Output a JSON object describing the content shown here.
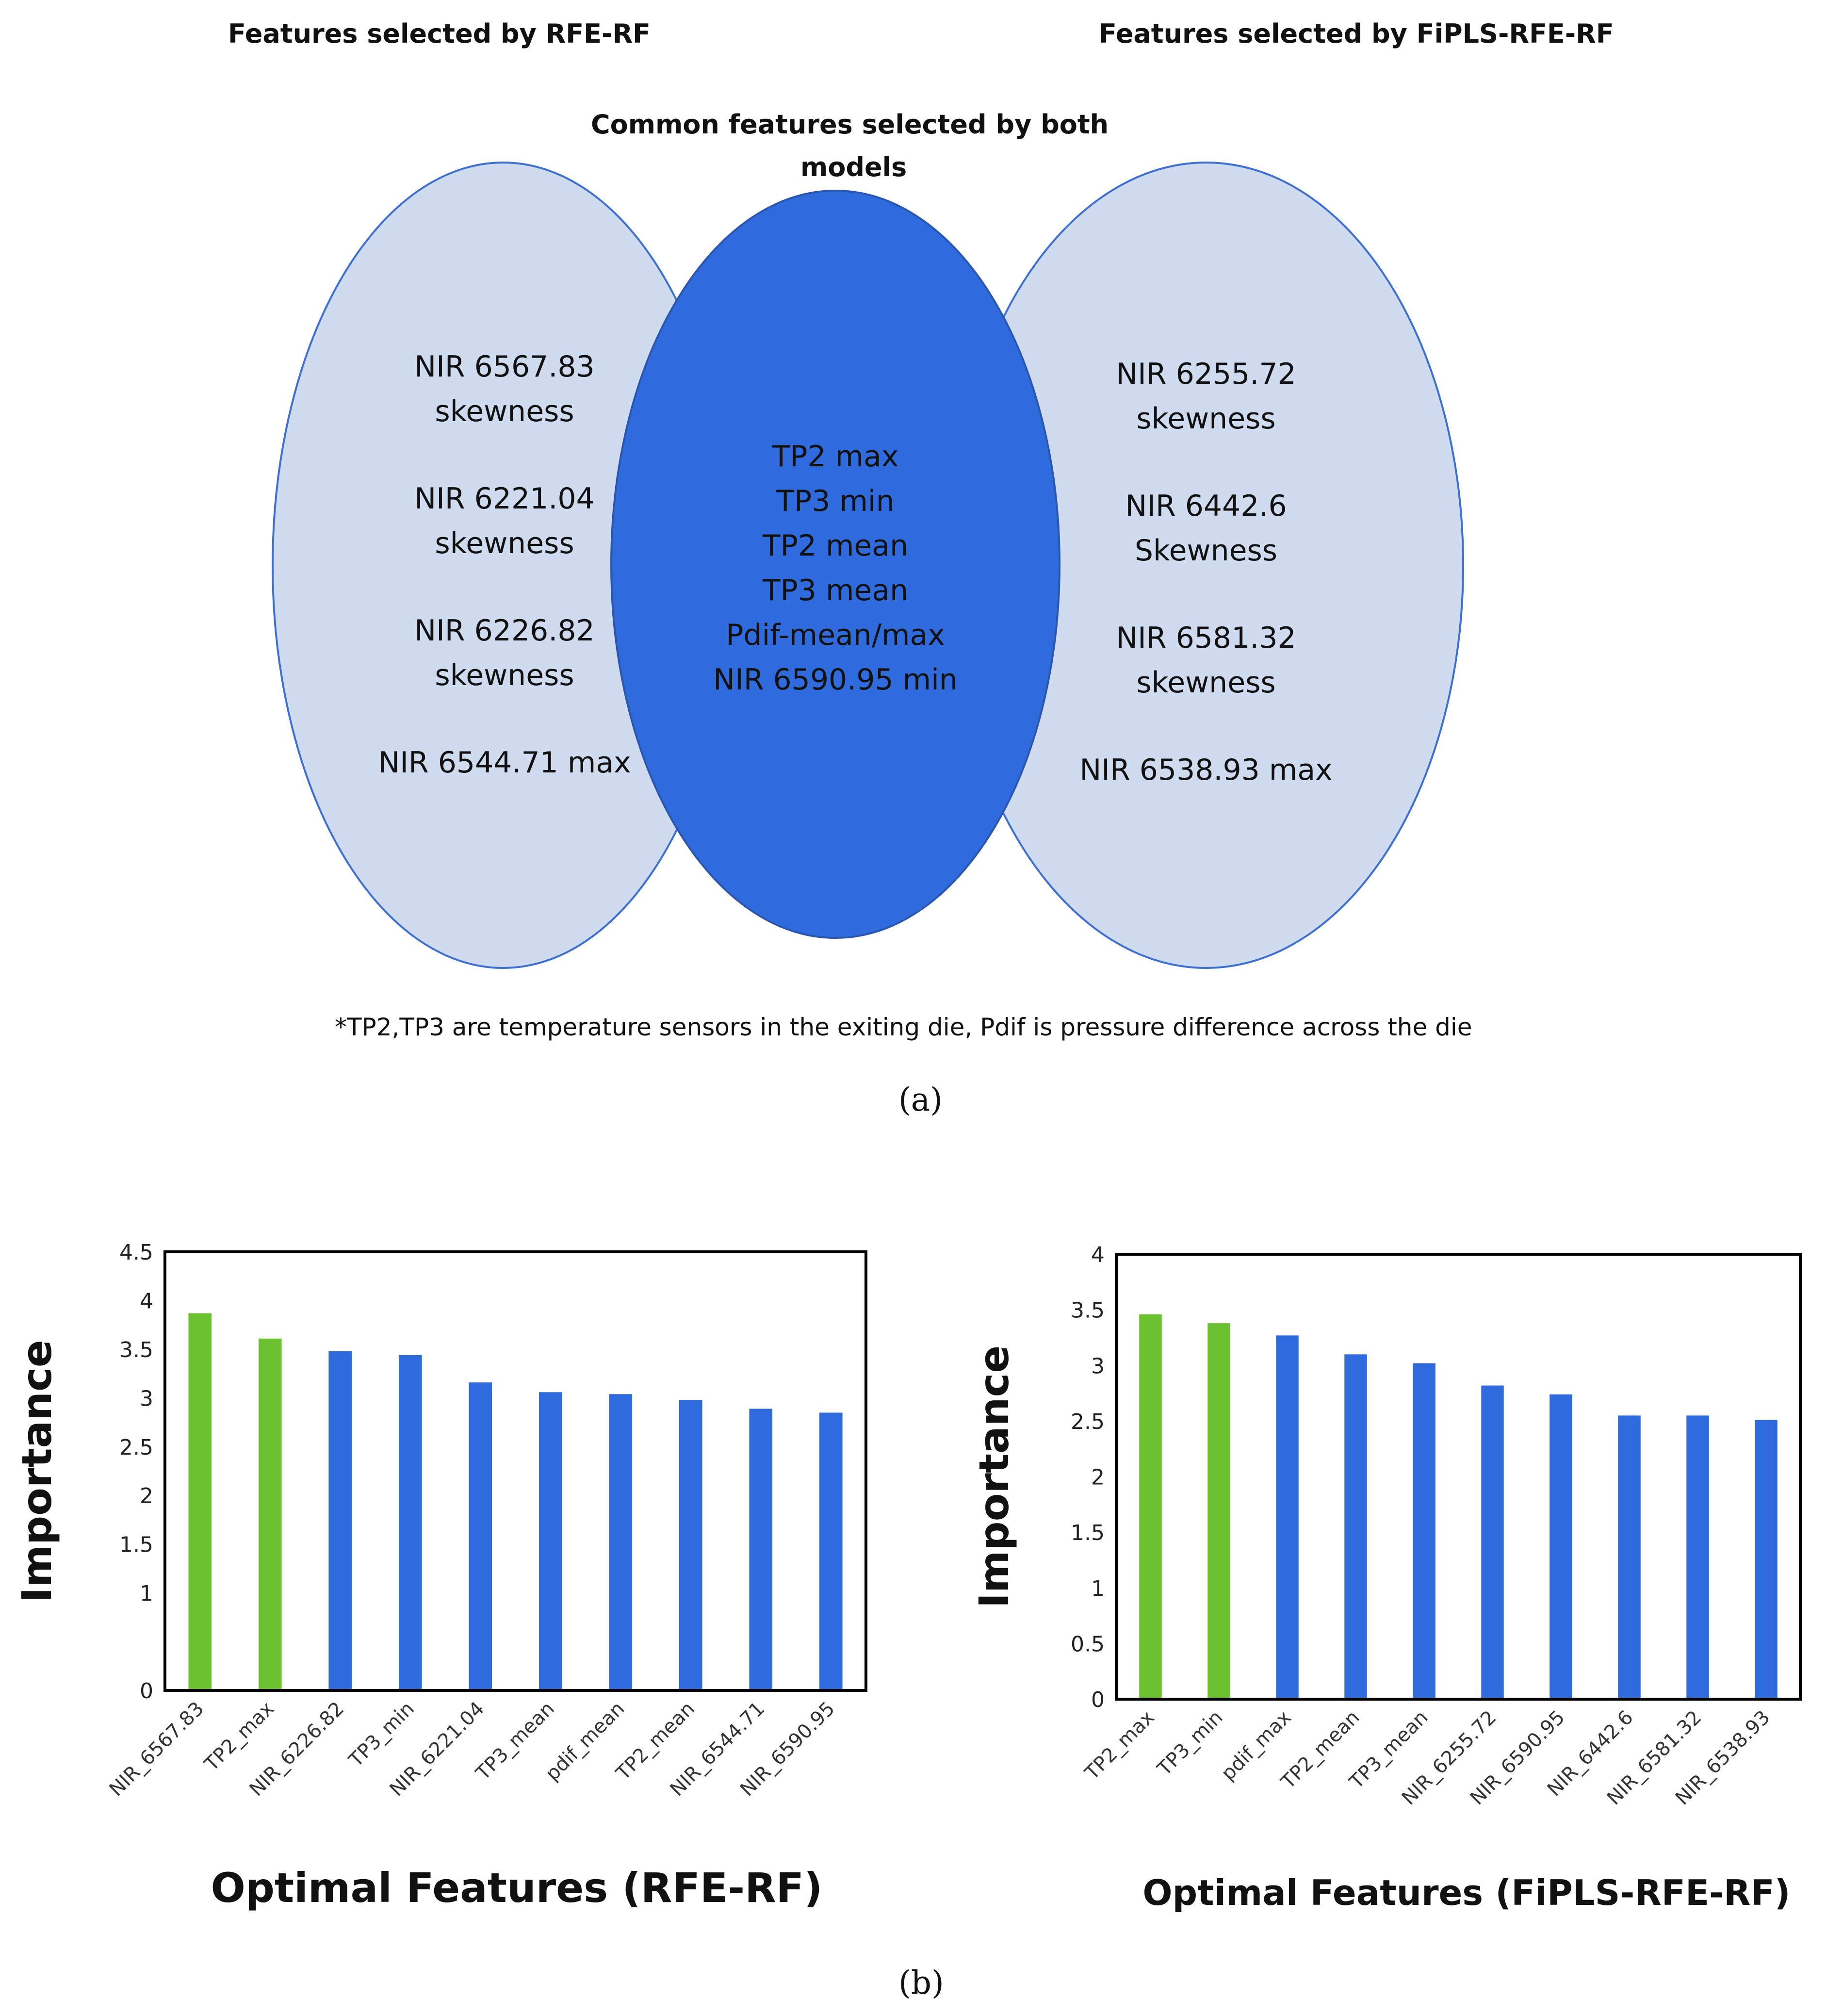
{
  "venn": {
    "left_header": "Features selected by RFE-RF",
    "right_header": "Features selected by FiPLS-RFE-RF",
    "center_header_line1": "Common features selected by both",
    "center_header_line2": "models",
    "left_items": [
      "NIR 6567.83",
      "skewness",
      "NIR 6221.04",
      "skewness",
      "NIR 6226.82",
      "skewness",
      "NIR 6544.71 max"
    ],
    "center_items": [
      "TP2 max",
      "TP3 min",
      "TP2 mean",
      "TP3 mean",
      "Pdif-mean/max",
      "NIR 6590.95 min"
    ],
    "right_items": [
      "NIR 6255.72",
      "skewness",
      "NIR 6442.6",
      "Skewness",
      "NIR 6581.32",
      "skewness",
      "NIR 6538.93 max"
    ],
    "footnote": "*TP2,TP3 are temperature sensors in the exiting die, Pdif is pressure difference across the die",
    "colors": {
      "outer": "#cfdbee",
      "center": "#2f6bdc",
      "stroke": "#3f6fcf"
    }
  },
  "panel_a": "(a)",
  "panel_b": "(b)",
  "chart_data": [
    {
      "type": "bar",
      "title": "",
      "xlabel": "Optimal Features (RFE-RF)",
      "ylabel": "Importance",
      "ylim": [
        0,
        4.5
      ],
      "yticks": [
        "0",
        "1",
        "1.5",
        "2",
        "2.5",
        "3",
        "3.5",
        "4",
        "4.5"
      ],
      "categories": [
        "NIR_6567.83",
        "TP2_max",
        "NIR_6226.82",
        "TP3_min",
        "NIR_6221.04",
        "TP3_mean",
        "pdif_mean",
        "TP2_mean",
        "NIR_6544.71",
        "NIR_6590.95"
      ],
      "values": [
        3.87,
        3.61,
        3.48,
        3.44,
        3.16,
        3.06,
        3.04,
        2.98,
        2.89,
        2.85
      ],
      "highlight_color": "#6cc12e",
      "bar_color": "#2f6bdc",
      "highlight_count": 2,
      "grid": false
    },
    {
      "type": "bar",
      "title": "",
      "xlabel": "Optimal Features (FiPLS-RFE-RF)",
      "ylabel": "Importance",
      "ylim": [
        0,
        4
      ],
      "yticks": [
        "0",
        "0.5",
        "1",
        "1.5",
        "2",
        "2.5",
        "3",
        "3.5",
        "4"
      ],
      "categories": [
        "TP2_max",
        "TP3_min",
        "pdif_max",
        "TP2_mean",
        "TP3_mean",
        "NIR_6255.72",
        "NIR_6590.95",
        "NIR_6442.6",
        "NIR_6581.32",
        "NIR_6538.93"
      ],
      "values": [
        3.46,
        3.38,
        3.27,
        3.1,
        3.02,
        2.82,
        2.74,
        2.55,
        2.55,
        2.51
      ],
      "highlight_color": "#6cc12e",
      "bar_color": "#2f6bdc",
      "highlight_count": 2,
      "grid": false
    }
  ]
}
